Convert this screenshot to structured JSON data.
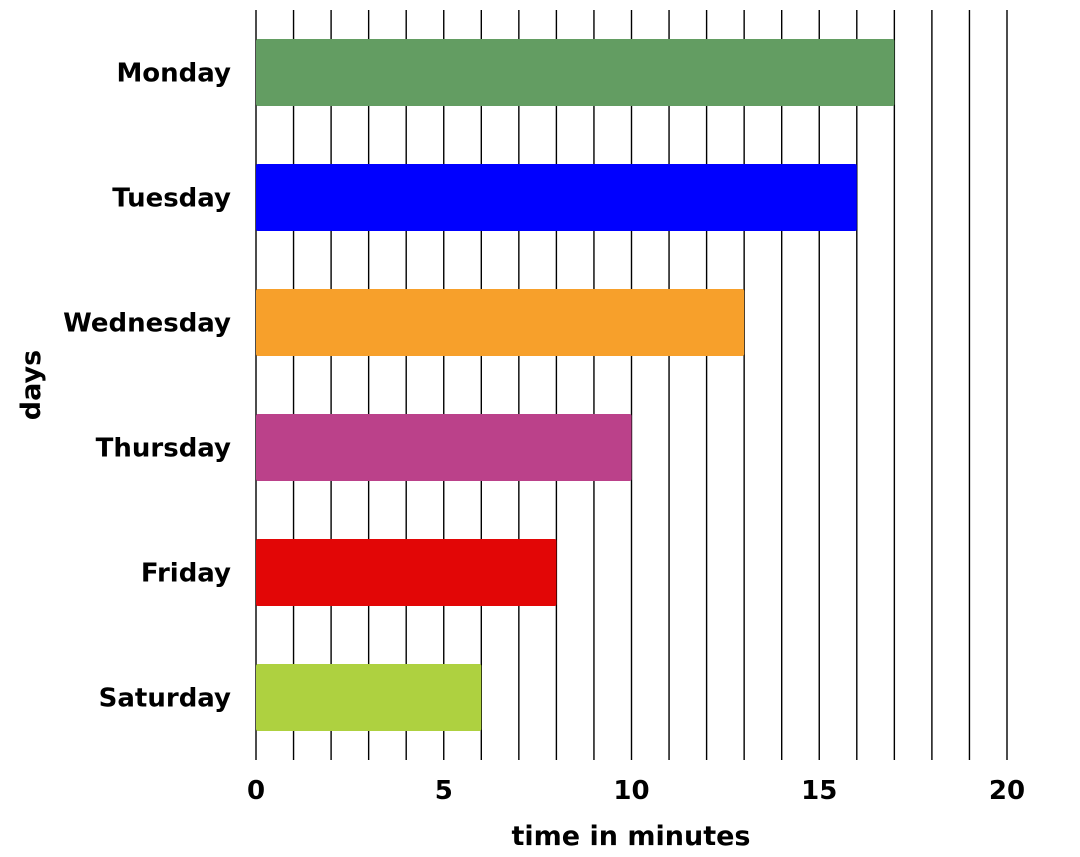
{
  "chart_data": {
    "type": "bar",
    "orientation": "horizontal",
    "categories": [
      "Monday",
      "Tuesday",
      "Wednesday",
      "Thursday",
      "Friday",
      "Saturday"
    ],
    "values": [
      17,
      16,
      13,
      10,
      8,
      6
    ],
    "colors": [
      "#639d62",
      "#0000ff",
      "#f7a02b",
      "#bb418a",
      "#e20606",
      "#aed140"
    ],
    "xlabel": "time in minutes",
    "ylabel": "days",
    "xlim": [
      0,
      20
    ],
    "xticks": [
      "0",
      "5",
      "10",
      "15",
      "20"
    ],
    "grid": "vertical lines every 1 minute",
    "legend": "none"
  }
}
